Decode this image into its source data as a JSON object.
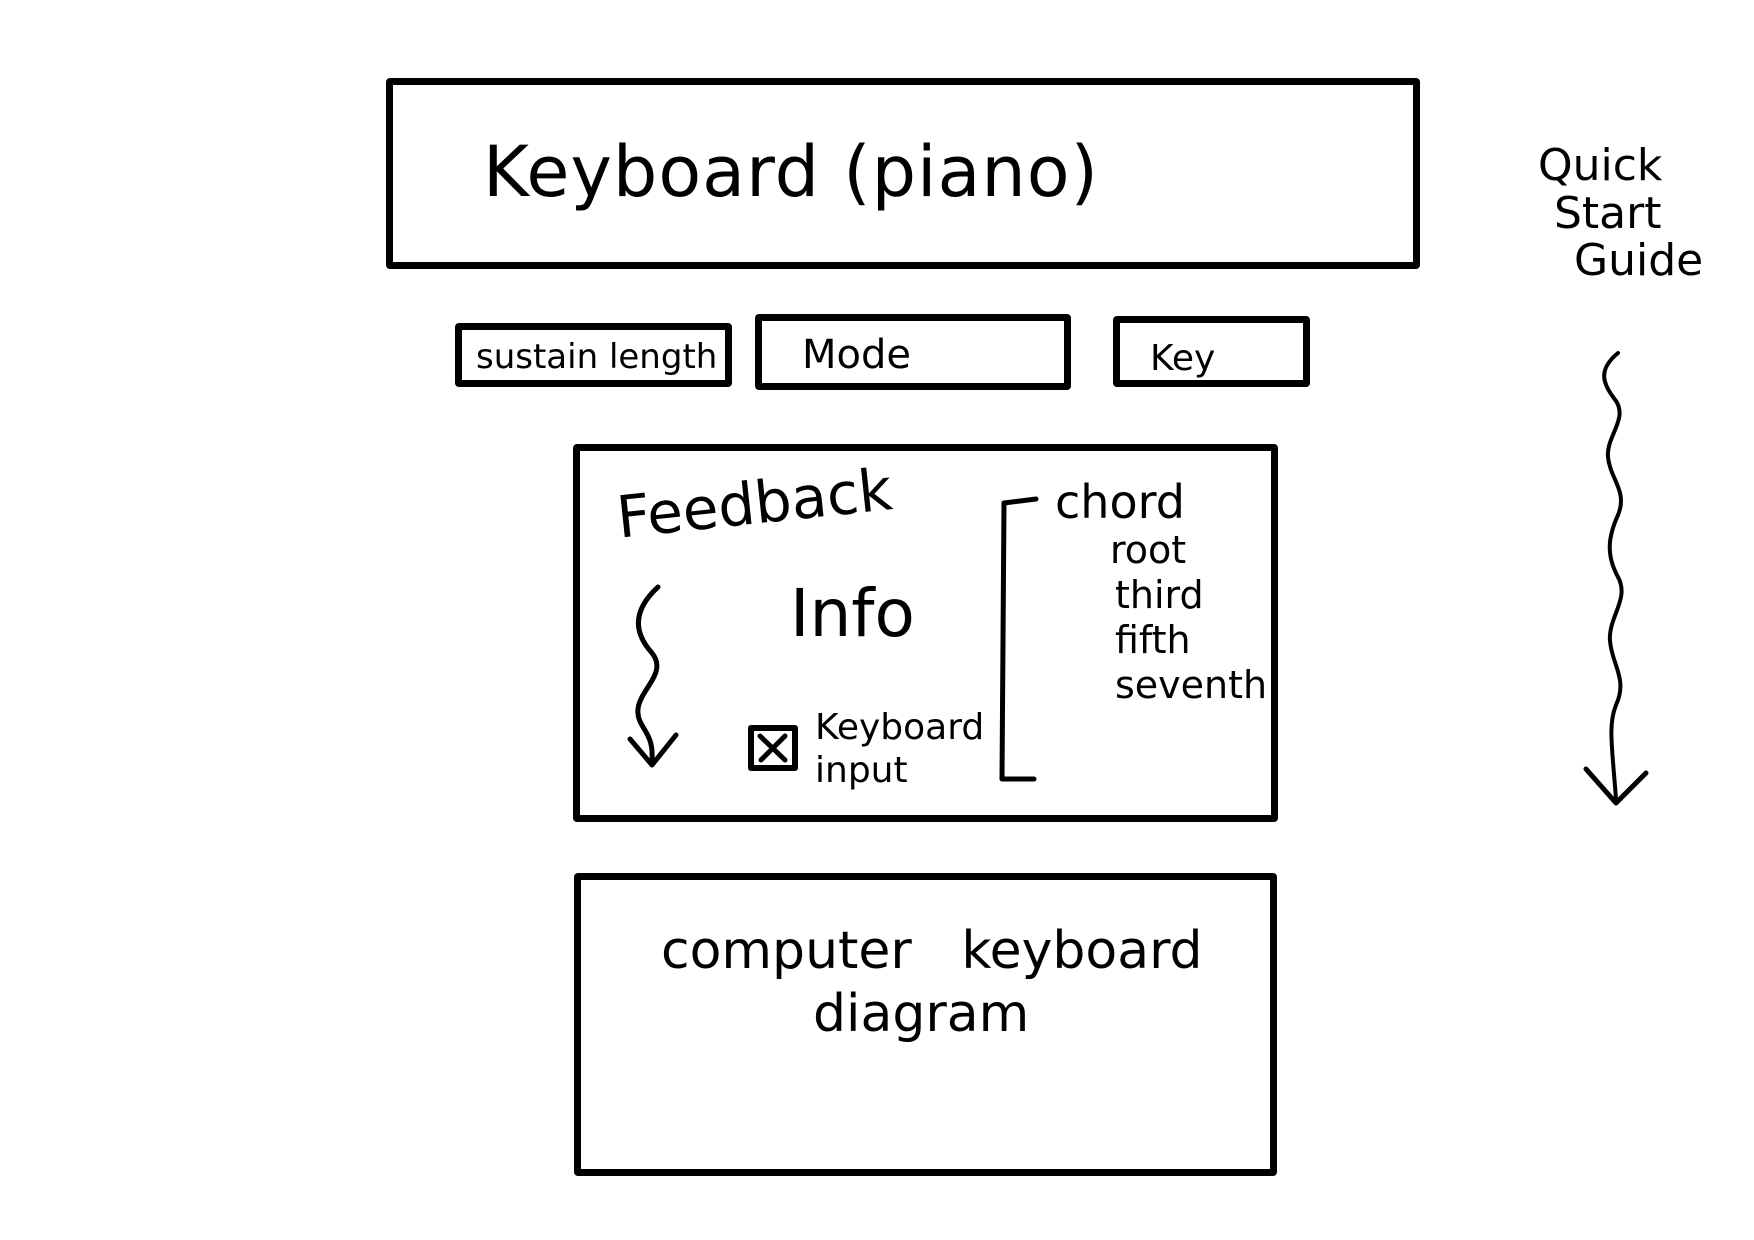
{
  "piano": {
    "label": "Keyboard (piano)"
  },
  "controls": {
    "sustain_label": "sustain length",
    "mode_label": "Mode",
    "key_label": "Key"
  },
  "feedback": {
    "title": "Feedback",
    "info_label": "Info",
    "keyboard_input": {
      "checked": true,
      "mark": "X",
      "label_line1": "Keyboard",
      "label_line2": "input"
    },
    "chord": {
      "title": "chord",
      "tones": [
        "root",
        "third",
        "fifth",
        "seventh"
      ]
    }
  },
  "diagram": {
    "line1": "computer   keyboard",
    "line2": "diagram"
  },
  "quick_start": {
    "line1": "Quick",
    "line2": "Start",
    "line3": "Guide"
  }
}
